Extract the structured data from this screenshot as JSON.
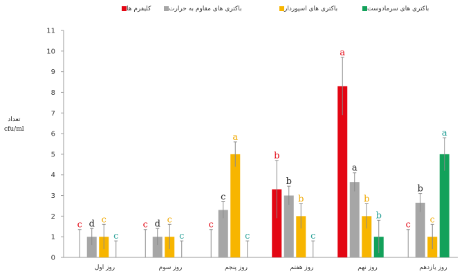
{
  "chart_data": {
    "type": "bar",
    "categories": [
      "روز اول",
      "روز سوم",
      "روز پنجم",
      "روز هفتم",
      "روز نهم",
      "روز یازدهم"
    ],
    "series": [
      {
        "name": "کلیفرم ها",
        "color": "#e30613",
        "values": [
          0,
          0,
          0,
          3.3,
          8.3,
          0
        ],
        "errors": [
          1.35,
          1.35,
          1.35,
          1.4,
          1.4,
          1.35
        ],
        "letters": [
          "c",
          "c",
          "c",
          "b",
          "a",
          "c"
        ],
        "letter_colors": [
          "#e30613",
          "#e30613",
          "#e30613",
          "#e30613",
          "#e30613",
          "#e30613"
        ]
      },
      {
        "name": "باکتری های مقاوم به حرارت",
        "color": "#a6a6a6",
        "values": [
          1.0,
          1.0,
          2.3,
          3.0,
          3.65,
          2.65
        ],
        "errors": [
          0.4,
          0.4,
          0.4,
          0.45,
          0.45,
          0.45
        ],
        "letters": [
          "d",
          "d",
          "c",
          "b",
          "a",
          "b"
        ],
        "letter_colors": [
          "#222222",
          "#222222",
          "#222222",
          "#222222",
          "#222222",
          "#222222"
        ]
      },
      {
        "name": "باکتری های اسپوردار",
        "color": "#f7b500",
        "values": [
          1.0,
          1.0,
          5.0,
          2.0,
          2.0,
          1.0
        ],
        "errors": [
          0.6,
          0.6,
          0.6,
          0.6,
          0.6,
          0.6
        ],
        "letters": [
          "c",
          "c",
          "a",
          "b",
          "b",
          "c"
        ],
        "letter_colors": [
          "#f0a800",
          "#f0a800",
          "#f0a800",
          "#f0a800",
          "#f0a800",
          "#f0a800"
        ]
      },
      {
        "name": "باکتری های سرمادوست",
        "color": "#12a15a",
        "values": [
          0,
          0,
          0,
          0,
          1.0,
          5.0
        ],
        "errors": [
          0.8,
          0.8,
          0.8,
          0.8,
          0.8,
          0.8
        ],
        "letters": [
          "c",
          "c",
          "c",
          "c",
          "b",
          "a"
        ],
        "letter_colors": [
          "#2aa198",
          "#2aa198",
          "#2aa198",
          "#2aa198",
          "#2aa198",
          "#2aa198"
        ]
      }
    ],
    "ylim": [
      0,
      11
    ],
    "yticks": [
      0,
      1,
      2,
      3,
      4,
      5,
      6,
      7,
      8,
      9,
      10,
      11
    ],
    "ylabel_line1": "تعداد",
    "ylabel_line2": "cfu/ml",
    "xlabel": "",
    "title": "",
    "legend_position": "top",
    "grid": false
  }
}
